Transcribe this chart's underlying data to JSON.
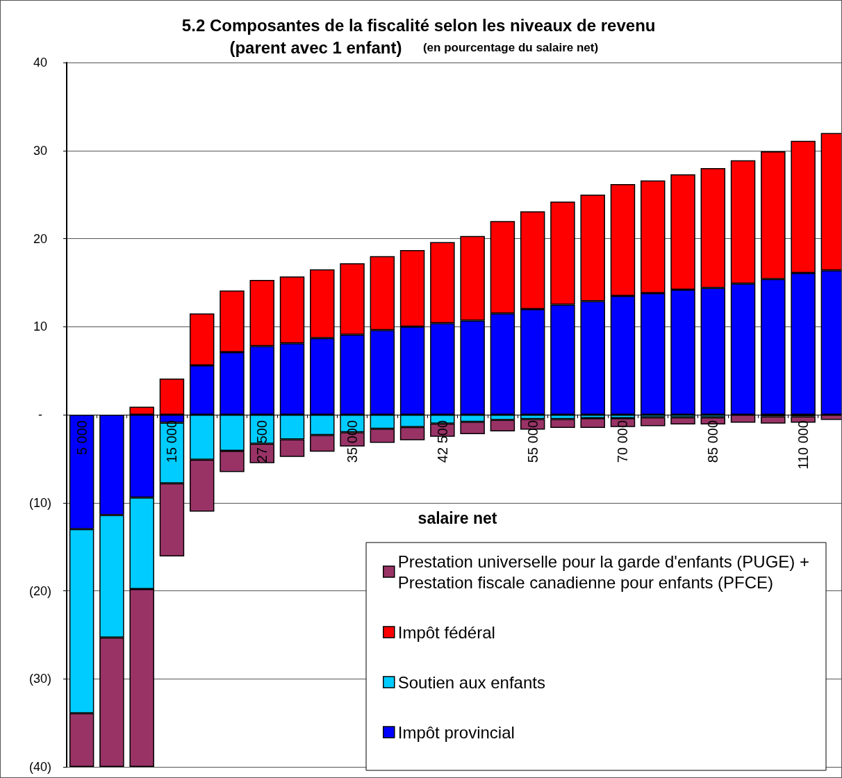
{
  "chart_data": {
    "type": "bar",
    "title": "5.2 Composantes de la fiscalité selon les niveaux de revenu (parent avec 1 enfant)",
    "subtitle": "(en pourcentage du salaire net)",
    "xlabel": "salaire net",
    "categories": [
      "5 000",
      null,
      null,
      "15 000",
      null,
      null,
      "27 500",
      null,
      null,
      "35 000",
      null,
      null,
      "42 500",
      null,
      null,
      "55 000",
      null,
      null,
      "70 000",
      null,
      null,
      "85 000",
      null,
      null,
      "110 000",
      null
    ],
    "stacked": true,
    "series": [
      {
        "name": "Impôt provincial",
        "color": "#0000ff",
        "values": [
          -13.0,
          -11.4,
          -9.4,
          -0.9,
          5.6,
          7.1,
          7.8,
          8.1,
          8.7,
          9.1,
          9.6,
          10.0,
          10.4,
          10.7,
          11.5,
          12.0,
          12.5,
          12.9,
          13.5,
          13.8,
          14.2,
          14.4,
          14.9,
          15.4,
          16.1,
          16.4
        ]
      },
      {
        "name": "Soutien aux enfants",
        "color": "#00ccff",
        "values": [
          -20.9,
          -13.9,
          -10.4,
          -6.9,
          -5.1,
          -4.1,
          -3.3,
          -2.8,
          -2.3,
          -2.0,
          -1.6,
          -1.4,
          -1.0,
          -0.8,
          -0.6,
          -0.5,
          -0.5,
          -0.4,
          -0.4,
          -0.3,
          -0.3,
          -0.3,
          null,
          -0.2,
          -0.2,
          null
        ]
      },
      {
        "name": "Impôt fédéral",
        "color": "#ff0000",
        "values": [
          0,
          0,
          0.9,
          4.1,
          5.9,
          7.0,
          7.5,
          7.6,
          7.8,
          8.1,
          8.4,
          8.7,
          9.2,
          9.6,
          10.5,
          11.1,
          11.7,
          12.1,
          12.7,
          12.8,
          13.1,
          13.6,
          14.0,
          14.5,
          15.0,
          15.6
        ]
      },
      {
        "name": "Prestation universelle pour la garde d'enfants (PUGE) + Prestation fiscale canadienne pour enfants (PFCE)",
        "color": "#993366",
        "values": [
          -6.1,
          -14.7,
          -20.2,
          -8.3,
          -5.9,
          -2.4,
          -2.2,
          -2.0,
          -1.9,
          -1.6,
          -1.6,
          -1.5,
          -1.5,
          -1.4,
          -1.3,
          -1.2,
          -1.0,
          -1.1,
          -1.0,
          -1.0,
          -0.8,
          -0.8,
          -0.9,
          -0.8,
          -0.7,
          -0.6
        ]
      }
    ],
    "ylim": [
      -40,
      40
    ],
    "yticks": [
      {
        "value": -40,
        "label": "(40)"
      },
      {
        "value": -30,
        "label": "(30)"
      },
      {
        "value": -20,
        "label": "(20)"
      },
      {
        "value": -10,
        "label": "(10)"
      },
      {
        "value": 0,
        "label": "-"
      },
      10,
      20,
      30,
      40
    ],
    "grid": "y",
    "legend": "bottom right"
  }
}
